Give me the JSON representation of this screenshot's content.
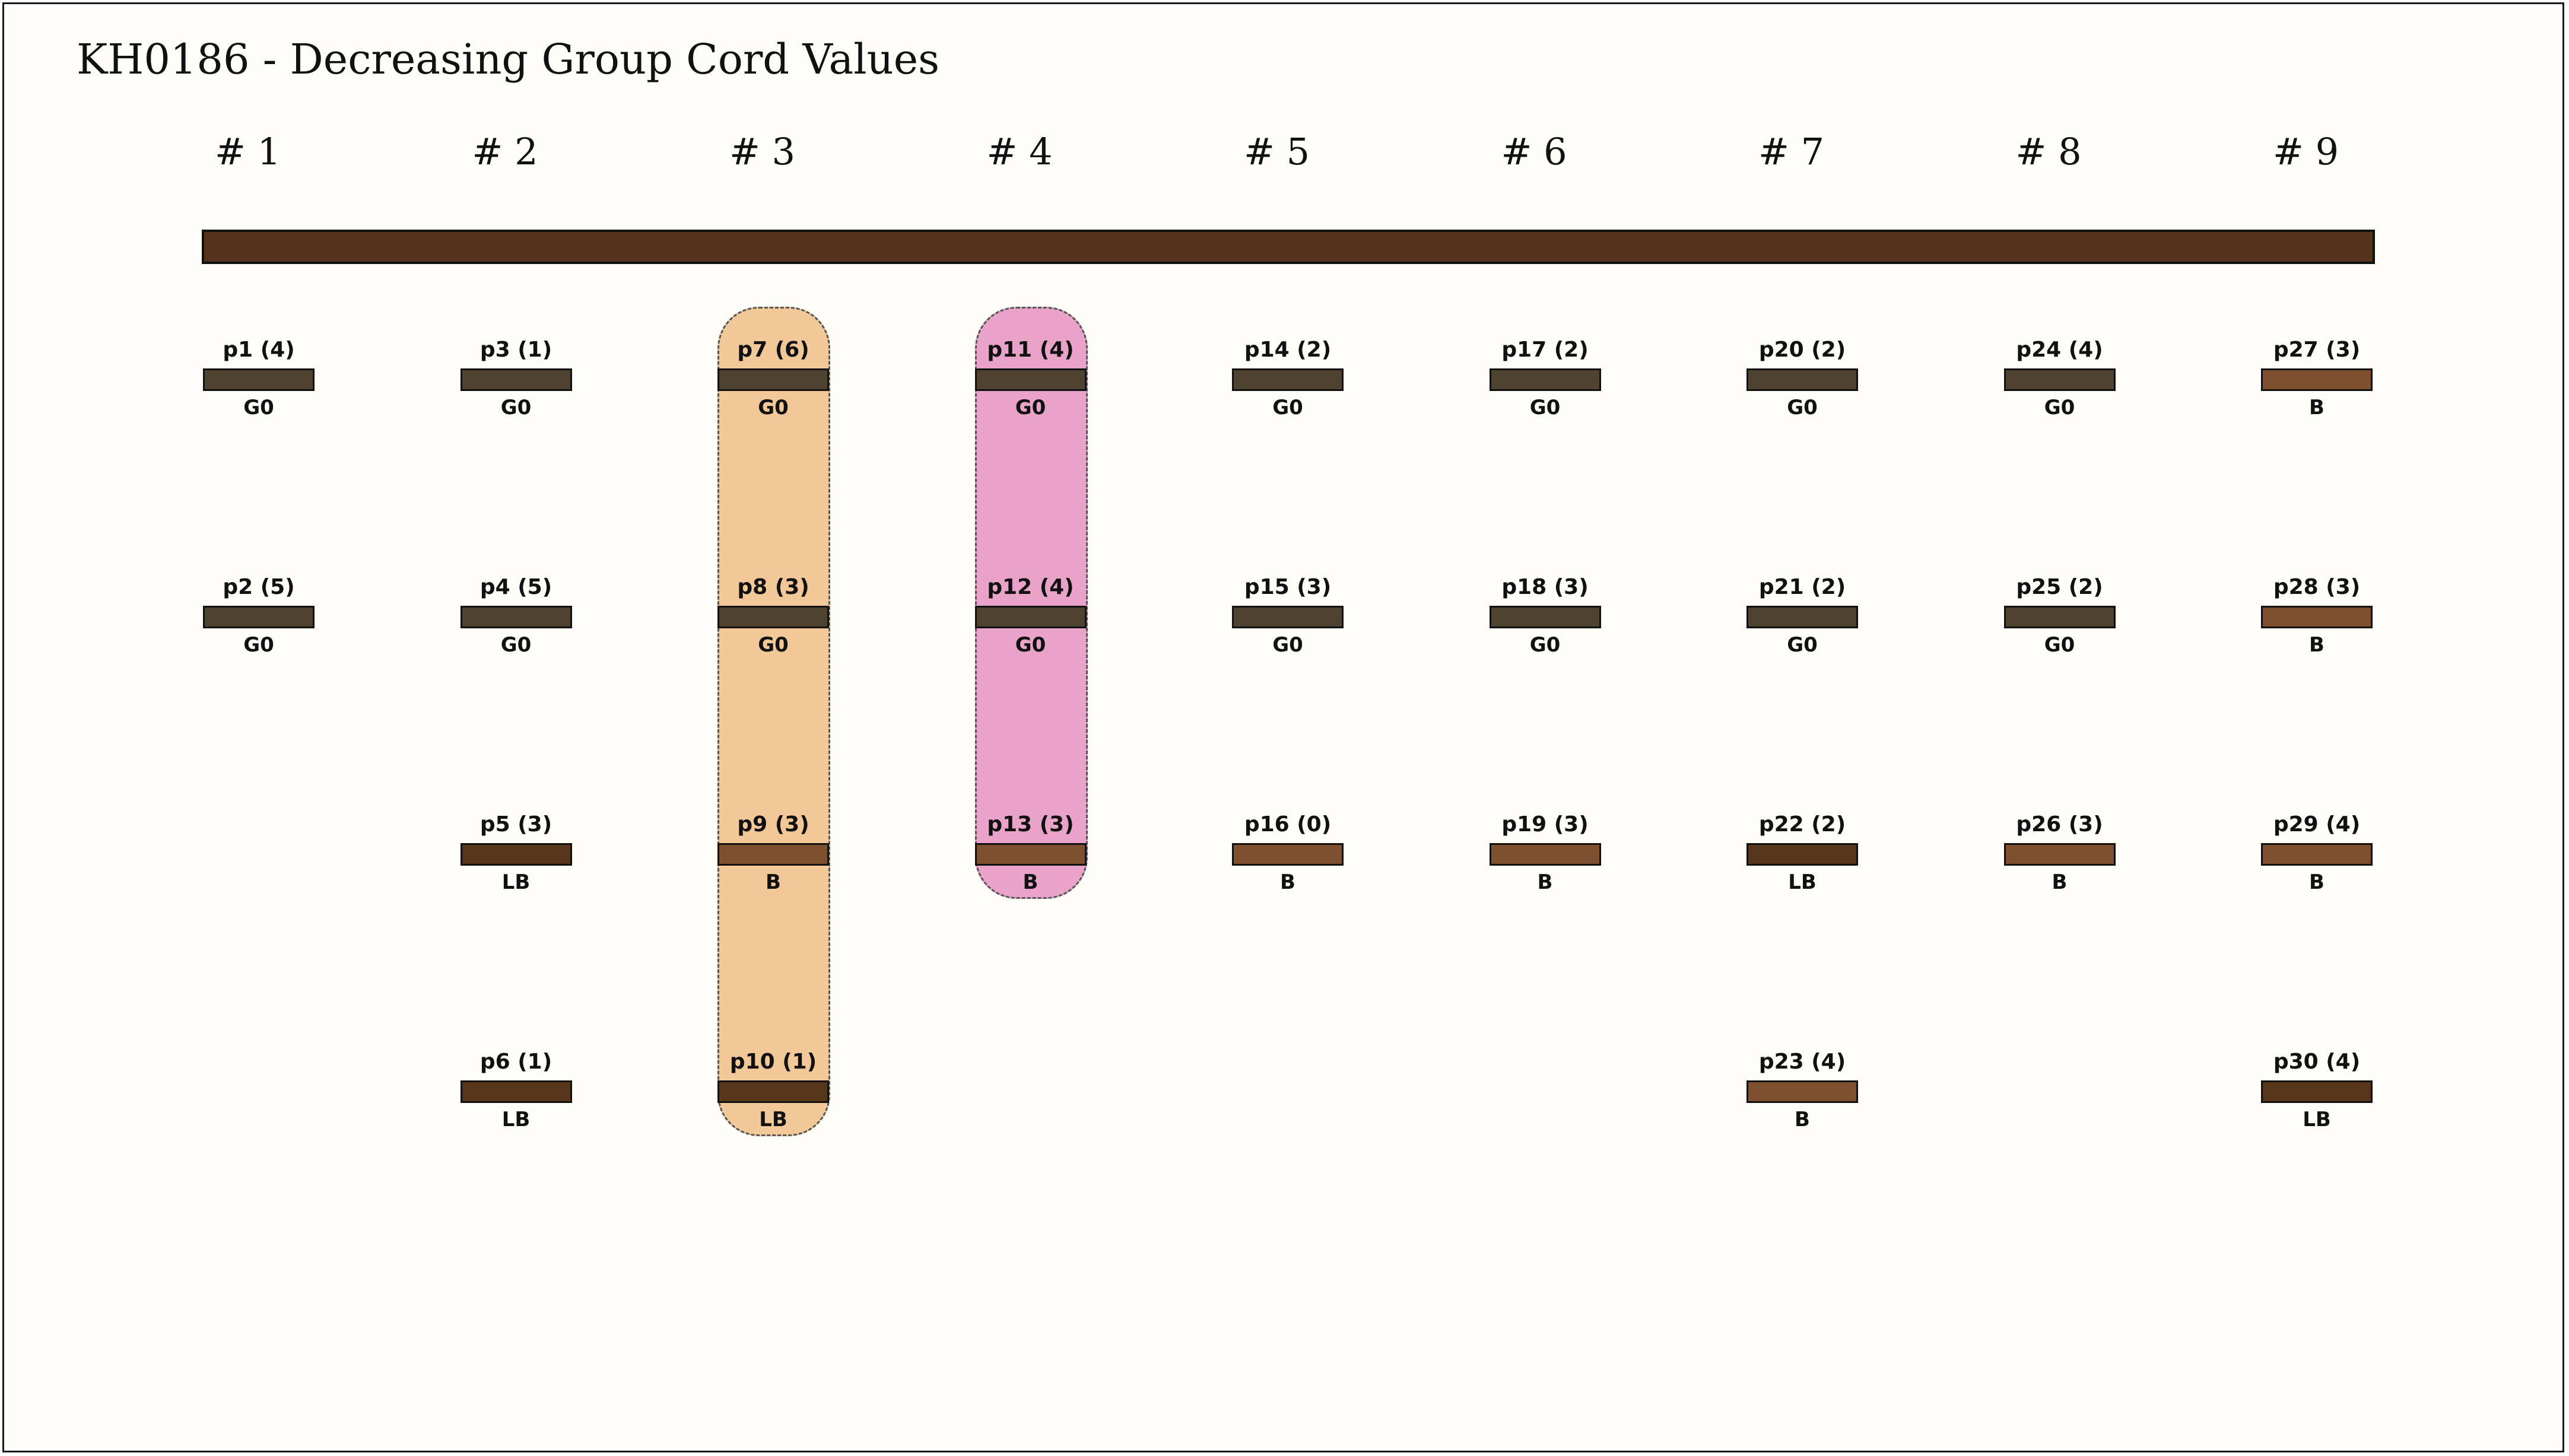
{
  "title": "KH0186 - Decreasing Group Cord Values",
  "main_cord_color": "#54331a",
  "color_codes": {
    "G0": "#4e4330",
    "B": "#7e5030",
    "LB": "#57351a"
  },
  "groups": [
    {
      "label": "# 1",
      "cords": [
        {
          "name": "p1 (4)",
          "color": "G0"
        },
        {
          "name": "p2 (5)",
          "color": "G0"
        }
      ]
    },
    {
      "label": "# 2",
      "cords": [
        {
          "name": "p3 (1)",
          "color": "G0"
        },
        {
          "name": "p4 (5)",
          "color": "G0"
        },
        {
          "name": "p5 (3)",
          "color": "LB"
        },
        {
          "name": "p6 (1)",
          "color": "LB"
        }
      ]
    },
    {
      "label": "# 3",
      "highlight": "#f2c899",
      "cords": [
        {
          "name": "p7 (6)",
          "color": "G0"
        },
        {
          "name": "p8 (3)",
          "color": "G0"
        },
        {
          "name": "p9 (3)",
          "color": "B"
        },
        {
          "name": "p10 (1)",
          "color": "LB"
        }
      ]
    },
    {
      "label": "# 4",
      "highlight": "#e9a3c9",
      "cords": [
        {
          "name": "p11 (4)",
          "color": "G0"
        },
        {
          "name": "p12 (4)",
          "color": "G0"
        },
        {
          "name": "p13 (3)",
          "color": "B"
        }
      ]
    },
    {
      "label": "# 5",
      "cords": [
        {
          "name": "p14 (2)",
          "color": "G0"
        },
        {
          "name": "p15 (3)",
          "color": "G0"
        },
        {
          "name": "p16 (0)",
          "color": "B"
        }
      ]
    },
    {
      "label": "# 6",
      "cords": [
        {
          "name": "p17 (2)",
          "color": "G0"
        },
        {
          "name": "p18 (3)",
          "color": "G0"
        },
        {
          "name": "p19 (3)",
          "color": "B"
        }
      ]
    },
    {
      "label": "# 7",
      "cords": [
        {
          "name": "p20 (2)",
          "color": "G0"
        },
        {
          "name": "p21 (2)",
          "color": "G0"
        },
        {
          "name": "p22 (2)",
          "color": "LB"
        },
        {
          "name": "p23 (4)",
          "color": "B"
        }
      ]
    },
    {
      "label": "# 8",
      "cords": [
        {
          "name": "p24 (4)",
          "color": "G0"
        },
        {
          "name": "p25 (2)",
          "color": "G0"
        },
        {
          "name": "p26 (3)",
          "color": "B"
        }
      ]
    },
    {
      "label": "# 9",
      "cords": [
        {
          "name": "p27 (3)",
          "color": "B"
        },
        {
          "name": "p28 (3)",
          "color": "B"
        },
        {
          "name": "p29 (4)",
          "color": "B"
        },
        {
          "name": "p30 (4)",
          "color": "LB"
        }
      ]
    }
  ]
}
